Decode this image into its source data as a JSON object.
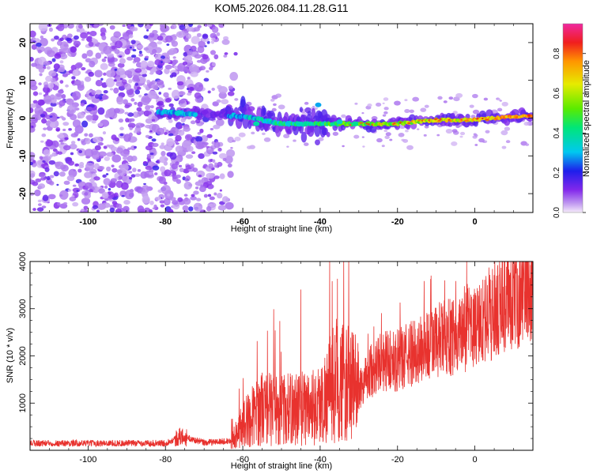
{
  "title": "KOM5.2026.084.11.28.G11",
  "chart_data": [
    {
      "type": "heatmap",
      "xlabel": "Height of straight line (km)",
      "ylabel": "Frequency (Hz)",
      "xlim": [
        -115,
        15
      ],
      "ylim": [
        -25,
        25
      ],
      "x_ticks": [
        -100,
        -80,
        -60,
        -40,
        -20,
        0
      ],
      "x_tick_labels": [
        "-100",
        "-80",
        "-60",
        "-40",
        "-20",
        "0"
      ],
      "y_ticks": [
        -20,
        -10,
        0,
        10,
        20
      ],
      "y_tick_labels": [
        "-20",
        "-10",
        "0",
        "10",
        "20"
      ],
      "colorbar": {
        "label": "Normalized spectral amplitude",
        "range": [
          0,
          0.95
        ],
        "ticks": [
          0.0,
          0.2,
          0.4,
          0.6,
          0.8
        ],
        "tick_labels": [
          "0.0",
          "0.2",
          "0.4",
          "0.6",
          "0.8"
        ]
      },
      "description_points": {
        "noise_region_x": [
          -115,
          -63
        ],
        "signal_trend_points": [
          [
            -80,
            1.5
          ],
          [
            -60,
            0.5
          ],
          [
            -50,
            -1.5
          ],
          [
            -40,
            -1.5
          ],
          [
            -30,
            -1.5
          ],
          [
            -20,
            -1.5
          ],
          [
            -10,
            -0.5
          ],
          [
            0,
            -0.5
          ],
          [
            10,
            0.5
          ],
          [
            15,
            0.5
          ]
        ]
      }
    },
    {
      "type": "line",
      "xlabel": "Height of straight line (km)",
      "ylabel": "SNR (10 * v/v)",
      "xlim": [
        -115,
        15
      ],
      "ylim": [
        0,
        4000
      ],
      "x_ticks": [
        -100,
        -80,
        -60,
        -40,
        -20,
        0
      ],
      "x_tick_labels": [
        "-100",
        "-80",
        "-60",
        "-40",
        "-20",
        "0"
      ],
      "y_ticks": [
        1000,
        2000,
        3000,
        4000
      ],
      "y_tick_labels": [
        "1000",
        "2000",
        "3000",
        "4000"
      ],
      "color": "#e8322e",
      "envelope": {
        "x": [
          -115,
          -100,
          -80,
          -76,
          -70,
          -63,
          -60,
          -55,
          -50,
          -45,
          -40,
          -36,
          -30,
          -25,
          -20,
          -10,
          0,
          10,
          15
        ],
        "y": [
          150,
          150,
          150,
          300,
          160,
          200,
          550,
          900,
          850,
          900,
          950,
          1500,
          1300,
          1900,
          1900,
          2300,
          2600,
          3200,
          3600
        ]
      }
    }
  ]
}
